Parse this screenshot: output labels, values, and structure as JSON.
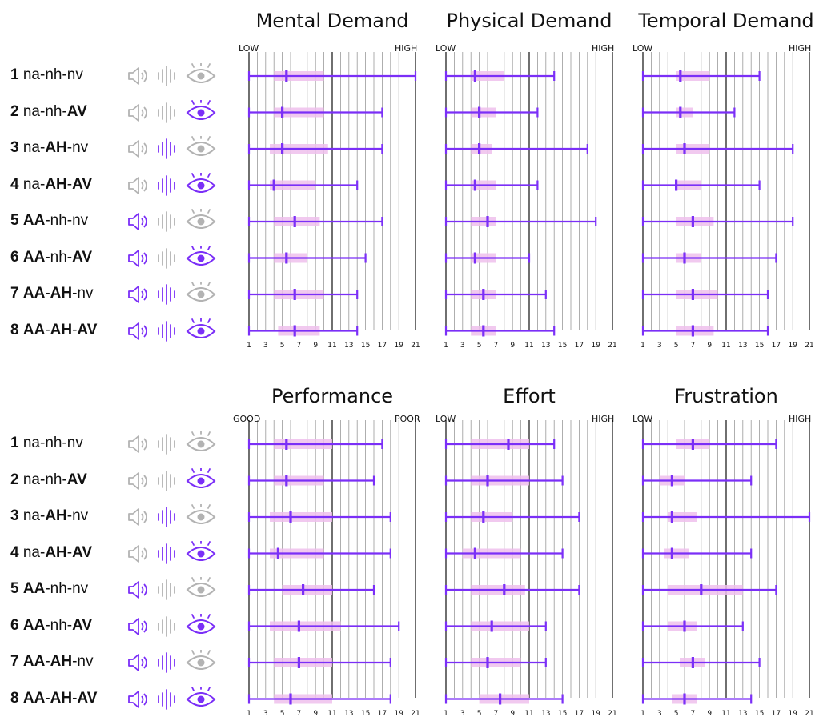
{
  "colors": {
    "accent": "#7b2ff7",
    "band": "#eec0ec",
    "gridline": "#9a9a9a",
    "inactive_icon": "#b3b3b3",
    "axis": "#222222"
  },
  "conditions": [
    {
      "num": "1",
      "parts": [
        {
          "text": "na",
          "bold": false
        },
        {
          "text": "-",
          "bold": false
        },
        {
          "text": "nh",
          "bold": false
        },
        {
          "text": "-",
          "bold": false
        },
        {
          "text": "nv",
          "bold": false
        }
      ],
      "audio": false,
      "haptic": false,
      "visual": false
    },
    {
      "num": "2",
      "parts": [
        {
          "text": "na",
          "bold": false
        },
        {
          "text": "-",
          "bold": false
        },
        {
          "text": "nh",
          "bold": false
        },
        {
          "text": "-",
          "bold": false
        },
        {
          "text": "AV",
          "bold": true
        }
      ],
      "audio": false,
      "haptic": false,
      "visual": true
    },
    {
      "num": "3",
      "parts": [
        {
          "text": "na",
          "bold": false
        },
        {
          "text": "-",
          "bold": false
        },
        {
          "text": "AH",
          "bold": true
        },
        {
          "text": "-",
          "bold": false
        },
        {
          "text": "nv",
          "bold": false
        }
      ],
      "audio": false,
      "haptic": true,
      "visual": false
    },
    {
      "num": "4",
      "parts": [
        {
          "text": "na",
          "bold": false
        },
        {
          "text": "-",
          "bold": false
        },
        {
          "text": "AH",
          "bold": true
        },
        {
          "text": "-",
          "bold": false
        },
        {
          "text": "AV",
          "bold": true
        }
      ],
      "audio": false,
      "haptic": true,
      "visual": true
    },
    {
      "num": "5",
      "parts": [
        {
          "text": "AA",
          "bold": true
        },
        {
          "text": "-",
          "bold": false
        },
        {
          "text": "nh",
          "bold": false
        },
        {
          "text": "-",
          "bold": false
        },
        {
          "text": "nv",
          "bold": false
        }
      ],
      "audio": true,
      "haptic": false,
      "visual": false
    },
    {
      "num": "6",
      "parts": [
        {
          "text": "AA",
          "bold": true
        },
        {
          "text": "-",
          "bold": false
        },
        {
          "text": "nh",
          "bold": false
        },
        {
          "text": "-",
          "bold": false
        },
        {
          "text": "AV",
          "bold": true
        }
      ],
      "audio": true,
      "haptic": false,
      "visual": true
    },
    {
      "num": "7",
      "parts": [
        {
          "text": "AA",
          "bold": true
        },
        {
          "text": "-",
          "bold": false
        },
        {
          "text": "AH",
          "bold": true
        },
        {
          "text": "-",
          "bold": false
        },
        {
          "text": "nv",
          "bold": false
        }
      ],
      "audio": true,
      "haptic": true,
      "visual": false
    },
    {
      "num": "8",
      "parts": [
        {
          "text": "AA",
          "bold": true
        },
        {
          "text": "-",
          "bold": false
        },
        {
          "text": "AH",
          "bold": true
        },
        {
          "text": "-",
          "bold": false
        },
        {
          "text": "AV",
          "bold": true
        }
      ],
      "audio": true,
      "haptic": true,
      "visual": true
    }
  ],
  "chart_data": [
    {
      "type": "box",
      "title": "Mental Demand",
      "low_label": "LOW",
      "high_label": "HIGH",
      "x_ticks": [
        1,
        3,
        5,
        7,
        9,
        11,
        13,
        15,
        17,
        19,
        21
      ],
      "xlim": [
        1,
        21
      ],
      "major_lines": [
        1,
        11,
        21
      ],
      "series": [
        {
          "min": 1,
          "q1": 4,
          "median": 5.5,
          "q3": 10,
          "max": 21
        },
        {
          "min": 1,
          "q1": 4,
          "median": 5,
          "q3": 10,
          "max": 17
        },
        {
          "min": 1,
          "q1": 3.5,
          "median": 5,
          "q3": 10.5,
          "max": 17
        },
        {
          "min": 1,
          "q1": 3.5,
          "median": 4,
          "q3": 9,
          "max": 14
        },
        {
          "min": 1,
          "q1": 4,
          "median": 6.5,
          "q3": 9.5,
          "max": 17
        },
        {
          "min": 1,
          "q1": 4,
          "median": 5.5,
          "q3": 8,
          "max": 15
        },
        {
          "min": 1,
          "q1": 4,
          "median": 6.5,
          "q3": 10,
          "max": 14
        },
        {
          "min": 1,
          "q1": 4.5,
          "median": 6.5,
          "q3": 9.5,
          "max": 14
        }
      ]
    },
    {
      "type": "box",
      "title": "Physical Demand",
      "low_label": "LOW",
      "high_label": "HIGH",
      "x_ticks": [
        1,
        3,
        5,
        7,
        9,
        11,
        13,
        15,
        17,
        19,
        21
      ],
      "xlim": [
        1,
        21
      ],
      "major_lines": [
        1,
        11,
        21
      ],
      "series": [
        {
          "min": 1,
          "q1": 4,
          "median": 4.5,
          "q3": 8,
          "max": 14
        },
        {
          "min": 1,
          "q1": 4,
          "median": 5,
          "q3": 7,
          "max": 12
        },
        {
          "min": 1,
          "q1": 4,
          "median": 5,
          "q3": 6.5,
          "max": 18
        },
        {
          "min": 1,
          "q1": 4,
          "median": 4.5,
          "q3": 7,
          "max": 12
        },
        {
          "min": 1,
          "q1": 4,
          "median": 6,
          "q3": 7,
          "max": 19
        },
        {
          "min": 1,
          "q1": 4,
          "median": 4.5,
          "q3": 7,
          "max": 11
        },
        {
          "min": 1,
          "q1": 4,
          "median": 5.5,
          "q3": 7,
          "max": 13
        },
        {
          "min": 1,
          "q1": 4,
          "median": 5.5,
          "q3": 7,
          "max": 14
        }
      ]
    },
    {
      "type": "box",
      "title": "Temporal Demand",
      "low_label": "LOW",
      "high_label": "HIGH",
      "x_ticks": [
        1,
        3,
        5,
        7,
        9,
        11,
        13,
        15,
        17,
        19,
        21
      ],
      "xlim": [
        1,
        21
      ],
      "major_lines": [
        1,
        11,
        21
      ],
      "series": [
        {
          "min": 1,
          "q1": 5,
          "median": 5.5,
          "q3": 9,
          "max": 15
        },
        {
          "min": 1,
          "q1": 5,
          "median": 5.5,
          "q3": 7,
          "max": 12
        },
        {
          "min": 1,
          "q1": 5,
          "median": 6,
          "q3": 9,
          "max": 19
        },
        {
          "min": 1,
          "q1": 5,
          "median": 5,
          "q3": 8,
          "max": 15
        },
        {
          "min": 1,
          "q1": 5,
          "median": 7,
          "q3": 9.5,
          "max": 19
        },
        {
          "min": 1,
          "q1": 5,
          "median": 6,
          "q3": 8,
          "max": 17
        },
        {
          "min": 1,
          "q1": 5,
          "median": 7,
          "q3": 10,
          "max": 16
        },
        {
          "min": 1,
          "q1": 5,
          "median": 7,
          "q3": 9.5,
          "max": 16
        }
      ]
    },
    {
      "type": "box",
      "title": "Performance",
      "low_label": "GOOD",
      "high_label": "POOR",
      "x_ticks": [
        1,
        3,
        5,
        7,
        9,
        11,
        13,
        15,
        17,
        19,
        21
      ],
      "xlim": [
        1,
        21
      ],
      "major_lines": [
        1,
        11,
        21
      ],
      "series": [
        {
          "min": 1,
          "q1": 4,
          "median": 5.5,
          "q3": 11,
          "max": 17
        },
        {
          "min": 1,
          "q1": 4,
          "median": 5.5,
          "q3": 10,
          "max": 16
        },
        {
          "min": 1,
          "q1": 3.5,
          "median": 6,
          "q3": 11,
          "max": 18
        },
        {
          "min": 1,
          "q1": 3.5,
          "median": 4.5,
          "q3": 10,
          "max": 18
        },
        {
          "min": 1,
          "q1": 5,
          "median": 7.5,
          "q3": 11,
          "max": 16
        },
        {
          "min": 1,
          "q1": 3.5,
          "median": 7,
          "q3": 12,
          "max": 19
        },
        {
          "min": 1,
          "q1": 4,
          "median": 7,
          "q3": 11,
          "max": 18
        },
        {
          "min": 1,
          "q1": 4,
          "median": 6,
          "q3": 11,
          "max": 18
        }
      ]
    },
    {
      "type": "box",
      "title": "Effort",
      "low_label": "LOW",
      "high_label": "HIGH",
      "x_ticks": [
        1,
        3,
        5,
        7,
        9,
        11,
        13,
        15,
        17,
        19,
        21
      ],
      "xlim": [
        1,
        21
      ],
      "major_lines": [
        1,
        11,
        21
      ],
      "series": [
        {
          "min": 1,
          "q1": 4,
          "median": 8.5,
          "q3": 11,
          "max": 14
        },
        {
          "min": 1,
          "q1": 4,
          "median": 6,
          "q3": 11,
          "max": 15
        },
        {
          "min": 1,
          "q1": 4,
          "median": 5.5,
          "q3": 9,
          "max": 17
        },
        {
          "min": 1,
          "q1": 3,
          "median": 4.5,
          "q3": 10,
          "max": 15
        },
        {
          "min": 1,
          "q1": 4,
          "median": 8,
          "q3": 10.5,
          "max": 17
        },
        {
          "min": 1,
          "q1": 4,
          "median": 6.5,
          "q3": 11,
          "max": 13
        },
        {
          "min": 1,
          "q1": 4,
          "median": 6,
          "q3": 10,
          "max": 13
        },
        {
          "min": 1,
          "q1": 5,
          "median": 7.5,
          "q3": 11,
          "max": 15
        }
      ]
    },
    {
      "type": "box",
      "title": "Frustration",
      "low_label": "LOW",
      "high_label": "HIGH",
      "x_ticks": [
        1,
        3,
        5,
        7,
        9,
        11,
        13,
        15,
        17,
        19,
        21
      ],
      "xlim": [
        1,
        21
      ],
      "major_lines": [
        1,
        11,
        21
      ],
      "series": [
        {
          "min": 1,
          "q1": 5,
          "median": 7,
          "q3": 9,
          "max": 17
        },
        {
          "min": 1,
          "q1": 3,
          "median": 4.5,
          "q3": 6,
          "max": 14
        },
        {
          "min": 1,
          "q1": 4,
          "median": 4.5,
          "q3": 7.5,
          "max": 21
        },
        {
          "min": 1,
          "q1": 3.5,
          "median": 4.5,
          "q3": 6.5,
          "max": 14
        },
        {
          "min": 1,
          "q1": 4,
          "median": 8,
          "q3": 13,
          "max": 17
        },
        {
          "min": 1,
          "q1": 4,
          "median": 6,
          "q3": 7.5,
          "max": 13
        },
        {
          "min": 1,
          "q1": 5.5,
          "median": 7,
          "q3": 8.5,
          "max": 15
        },
        {
          "min": 1,
          "q1": 4.5,
          "median": 6,
          "q3": 7.5,
          "max": 14
        }
      ]
    }
  ]
}
